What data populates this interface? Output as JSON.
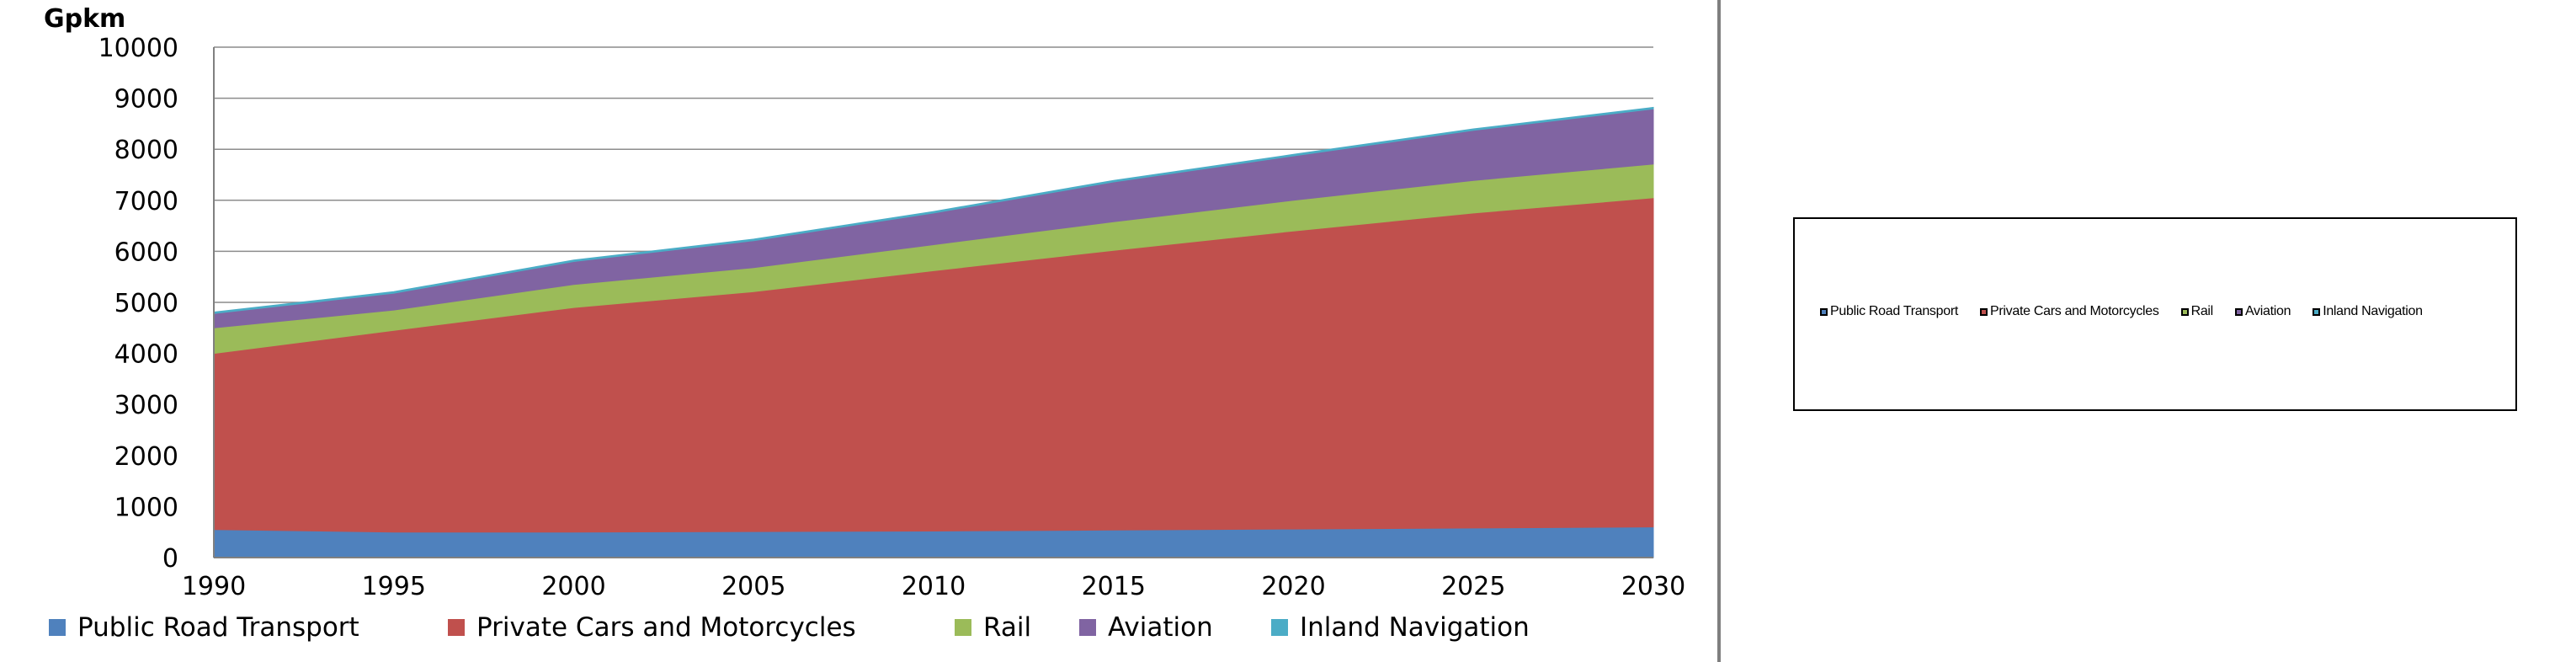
{
  "chart_data": {
    "type": "area",
    "stacked": true,
    "title": "",
    "xlabel": "",
    "ylabel": "Gpkm",
    "x": [
      1990,
      1995,
      2000,
      2005,
      2010,
      2015,
      2020,
      2025,
      2030
    ],
    "ylim": [
      0,
      10000
    ],
    "yticks": [
      0,
      1000,
      2000,
      3000,
      4000,
      5000,
      6000,
      7000,
      8000,
      9000,
      10000
    ],
    "ytick_labels": [
      "0",
      "1000",
      "2000",
      "3000",
      "4000",
      "5000",
      "6000",
      "7000",
      "8000",
      "9000",
      "10000"
    ],
    "xtick_labels": [
      "1990",
      "1995",
      "2000",
      "2005",
      "2010",
      "2015",
      "2020",
      "2025",
      "2030"
    ],
    "grid": "horizontal",
    "legend_position": "bottom",
    "series": [
      {
        "name": "Public Road Transport",
        "color": "#4f81bd",
        "values": [
          550,
          500,
          500,
          510,
          520,
          540,
          560,
          580,
          600
        ]
      },
      {
        "name": "Private Cars and Motorcycles",
        "color": "#c0504d",
        "values": [
          3450,
          3950,
          4400,
          4700,
          5100,
          5480,
          5840,
          6170,
          6450
        ]
      },
      {
        "name": "Rail",
        "color": "#9bbb59",
        "values": [
          500,
          400,
          450,
          470,
          510,
          560,
          600,
          640,
          660
        ]
      },
      {
        "name": "Aviation",
        "color": "#8064a2",
        "values": [
          280,
          330,
          450,
          530,
          620,
          780,
          870,
          980,
          1080
        ]
      },
      {
        "name": "Inland Navigation",
        "color": "#4bacc6",
        "values": [
          30,
          30,
          30,
          30,
          30,
          30,
          30,
          30,
          30
        ]
      }
    ]
  }
}
